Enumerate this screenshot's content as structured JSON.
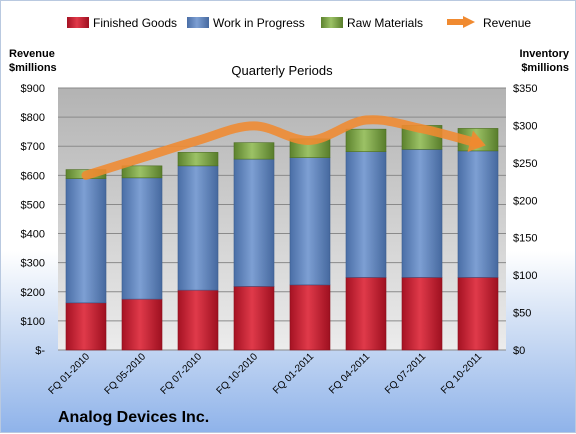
{
  "company": "Analog Devices Inc.",
  "chart_data": {
    "type": "bar",
    "subtype": "stacked-bar-with-line",
    "title": "Quarterly Periods",
    "left_axis_label": [
      "Revenue",
      "$millions"
    ],
    "right_axis_label": [
      "Inventory",
      "$millions"
    ],
    "categories": [
      "FQ 01-2010",
      "FQ 05-2010",
      "FQ 07-2010",
      "FQ 10-2010",
      "FQ 01-2011",
      "FQ 04-2011",
      "FQ 07-2011",
      "FQ 10-2011"
    ],
    "left_ylim": [
      0,
      900
    ],
    "left_ticks": [
      "$-",
      "$100",
      "$200",
      "$300",
      "$400",
      "$500",
      "$600",
      "$700",
      "$800",
      "$900"
    ],
    "right_ylim": [
      0,
      350
    ],
    "right_ticks": [
      "$0",
      "$50",
      "$100",
      "$150",
      "$200",
      "$250",
      "$300",
      "$350"
    ],
    "legend_position": "top",
    "grid": true,
    "series": [
      {
        "name": "Finished Goods",
        "axis": "right",
        "kind": "bar",
        "color": "#c0172b",
        "values": [
          63,
          68,
          80,
          85,
          87,
          97,
          97,
          97
        ]
      },
      {
        "name": "Work in Progress",
        "axis": "right",
        "kind": "bar",
        "color": "#5b80b8",
        "values": [
          166,
          162,
          166,
          170,
          170,
          168,
          171,
          169
        ]
      },
      {
        "name": "Raw Materials",
        "axis": "right",
        "kind": "bar",
        "color": "#6f9a3a",
        "values": [
          12,
          16,
          18,
          22,
          25,
          30,
          32,
          30
        ]
      },
      {
        "name": "Revenue",
        "axis": "left",
        "kind": "line",
        "color": "#f08a30",
        "values": [
          600,
          660,
          720,
          770,
          720,
          790,
          760,
          710
        ]
      }
    ]
  }
}
